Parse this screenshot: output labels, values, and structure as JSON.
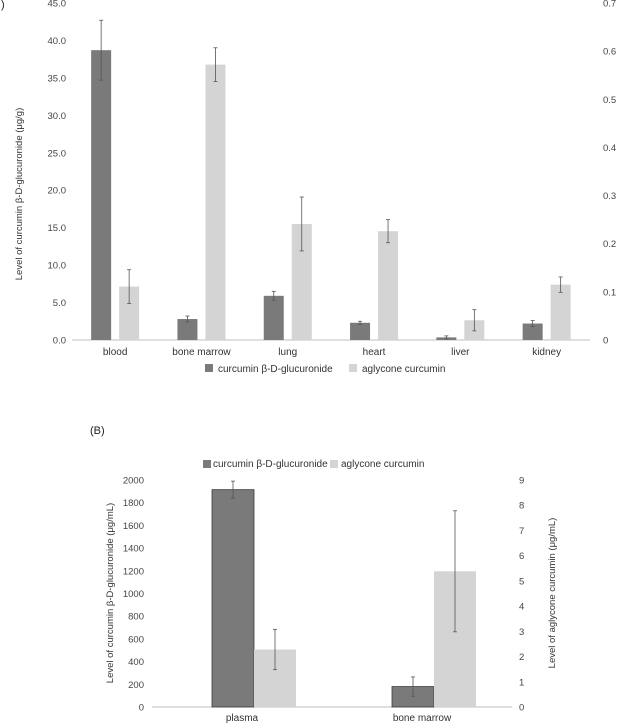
{
  "chart_data": [
    {
      "type": "bar",
      "panel_label": "",
      "categories": [
        "blood",
        "bone marrow",
        "lung",
        "heart",
        "liver",
        "kidney"
      ],
      "series": [
        {
          "name": "curcumin β-D-glucuronide",
          "axis": "left",
          "color": "#7a7a7a",
          "values": [
            38.7,
            2.8,
            5.9,
            2.3,
            0.35,
            2.2
          ],
          "errors": [
            4.0,
            0.4,
            0.6,
            0.2,
            0.2,
            0.4
          ]
        },
        {
          "name": "aglycone curcumin",
          "axis": "right",
          "color": "#d4d4d4",
          "values": [
            0.111,
            0.572,
            0.241,
            0.226,
            0.041,
            0.115
          ],
          "errors": [
            0.035,
            0.035,
            0.056,
            0.024,
            0.022,
            0.016
          ]
        }
      ],
      "y_left": {
        "label": "Level of curcumin β-D-glucuronide (μg/g)",
        "ticks": [
          "0.0",
          "5.0",
          "10.0",
          "15.0",
          "20.0",
          "25.0",
          "30.0",
          "35.0",
          "40.0",
          "45.0"
        ],
        "ylim": [
          0,
          45
        ]
      },
      "y_right": {
        "label": "",
        "ticks": [
          "0",
          "0.1",
          "0.2",
          "0.3",
          "0.4",
          "0.5",
          "0.6",
          "0.7"
        ],
        "ylim": [
          0,
          0.7
        ]
      },
      "legend_position": "bottom",
      "grid": false
    },
    {
      "type": "bar",
      "panel_label": "(B)",
      "categories": [
        "plasma",
        "bone marrow"
      ],
      "series": [
        {
          "name": "curcumin β-D-glucuronide",
          "axis": "left",
          "color": "#7a7a7a",
          "values": [
            1915,
            180
          ],
          "errors": [
            75,
            85
          ]
        },
        {
          "name": "aglycone curcumin",
          "axis": "right",
          "color": "#d4d4d4",
          "values": [
            2.28,
            5.38
          ],
          "errors": [
            0.8,
            2.4
          ]
        }
      ],
      "y_left": {
        "label": "Level of curcumin β-D-glucuronide (μg/mL)",
        "ticks": [
          "0",
          "200",
          "400",
          "600",
          "800",
          "1000",
          "1200",
          "1400",
          "1600",
          "1800",
          "2000"
        ],
        "ylim": [
          0,
          2000
        ]
      },
      "y_right": {
        "label": "Level of aglycone curcumin  (μg/mL)",
        "ticks": [
          "0",
          "1",
          "2",
          "3",
          "4",
          "5",
          "6",
          "7",
          "8",
          "9"
        ],
        "ylim": [
          0,
          9
        ]
      },
      "legend_position": "top",
      "grid": false
    }
  ]
}
